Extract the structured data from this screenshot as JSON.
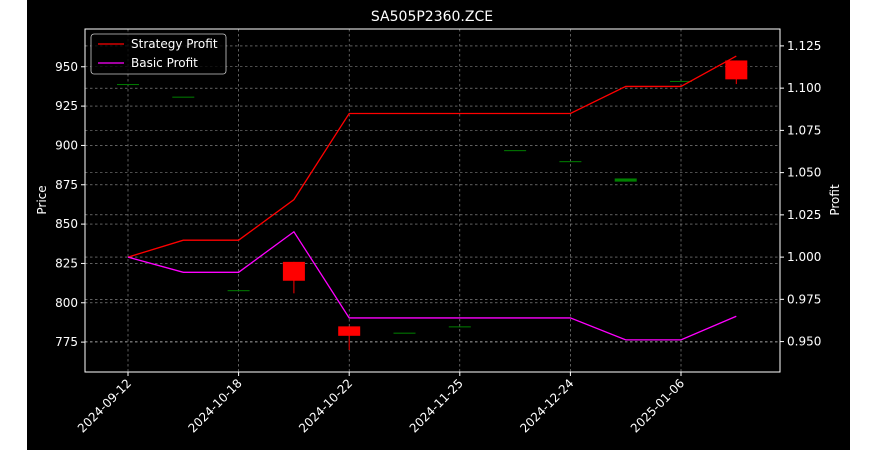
{
  "chart_data": {
    "type": "line",
    "title": "SA505P2360.ZCE",
    "xlabel": "",
    "ylabel": "Price",
    "y2label": "Profit",
    "background": "#000000",
    "grid": true,
    "legend_position": "top-left",
    "x_tick_labels": [
      "2024-09-12",
      "2024-10-18",
      "2024-10-22",
      "2024-11-25",
      "2024-12-24",
      "2025-01-06"
    ],
    "price_axis": {
      "ylim": [
        756,
        974
      ],
      "ticks": [
        775,
        800,
        825,
        850,
        875,
        900,
        925,
        950
      ]
    },
    "profit_axis": {
      "ylim": [
        0.932,
        1.135
      ],
      "ticks": [
        0.95,
        0.975,
        1.0,
        1.025,
        1.05,
        1.075,
        1.1,
        1.125
      ],
      "tick_labels": [
        "0.950",
        "0.975",
        "1.000",
        "1.025",
        "1.050",
        "1.075",
        "1.100",
        "1.125"
      ]
    },
    "series": [
      {
        "name": "Strategy Profit",
        "color": "#ff0000",
        "values": [
          1.0,
          1.01,
          1.01,
          1.034,
          1.085,
          1.085,
          1.085,
          1.085,
          1.085,
          1.101,
          1.101,
          1.119
        ]
      },
      {
        "name": "Basic Profit",
        "color": "#ff00ff",
        "values": [
          1.0,
          0.991,
          0.991,
          1.015,
          0.964,
          0.964,
          0.964,
          0.964,
          0.964,
          0.951,
          0.951,
          0.965
        ]
      }
    ],
    "candles": [
      {
        "open": 939,
        "high": 939,
        "low": 939,
        "close": 939
      },
      {
        "open": 931,
        "high": 931,
        "low": 931,
        "close": 931
      },
      {
        "open": 808,
        "high": 808,
        "low": 808,
        "close": 808
      },
      {
        "open": 826,
        "high": 826,
        "low": 806,
        "close": 814
      },
      {
        "open": 785,
        "high": 785,
        "low": 770,
        "close": 779
      },
      {
        "open": 781,
        "high": 781,
        "low": 781,
        "close": 781
      },
      {
        "open": 785,
        "high": 785,
        "low": 785,
        "close": 785
      },
      {
        "open": 897,
        "high": 897,
        "low": 897,
        "close": 897
      },
      {
        "open": 890,
        "high": 890,
        "low": 890,
        "close": 890
      },
      {
        "open": 877,
        "high": 879,
        "low": 877,
        "close": 879
      },
      {
        "open": 941,
        "high": 941,
        "low": 941,
        "close": 941
      },
      {
        "open": 954,
        "high": 954,
        "low": 939,
        "close": 942
      }
    ],
    "up_color": "#008000",
    "down_color": "#ff0000"
  }
}
